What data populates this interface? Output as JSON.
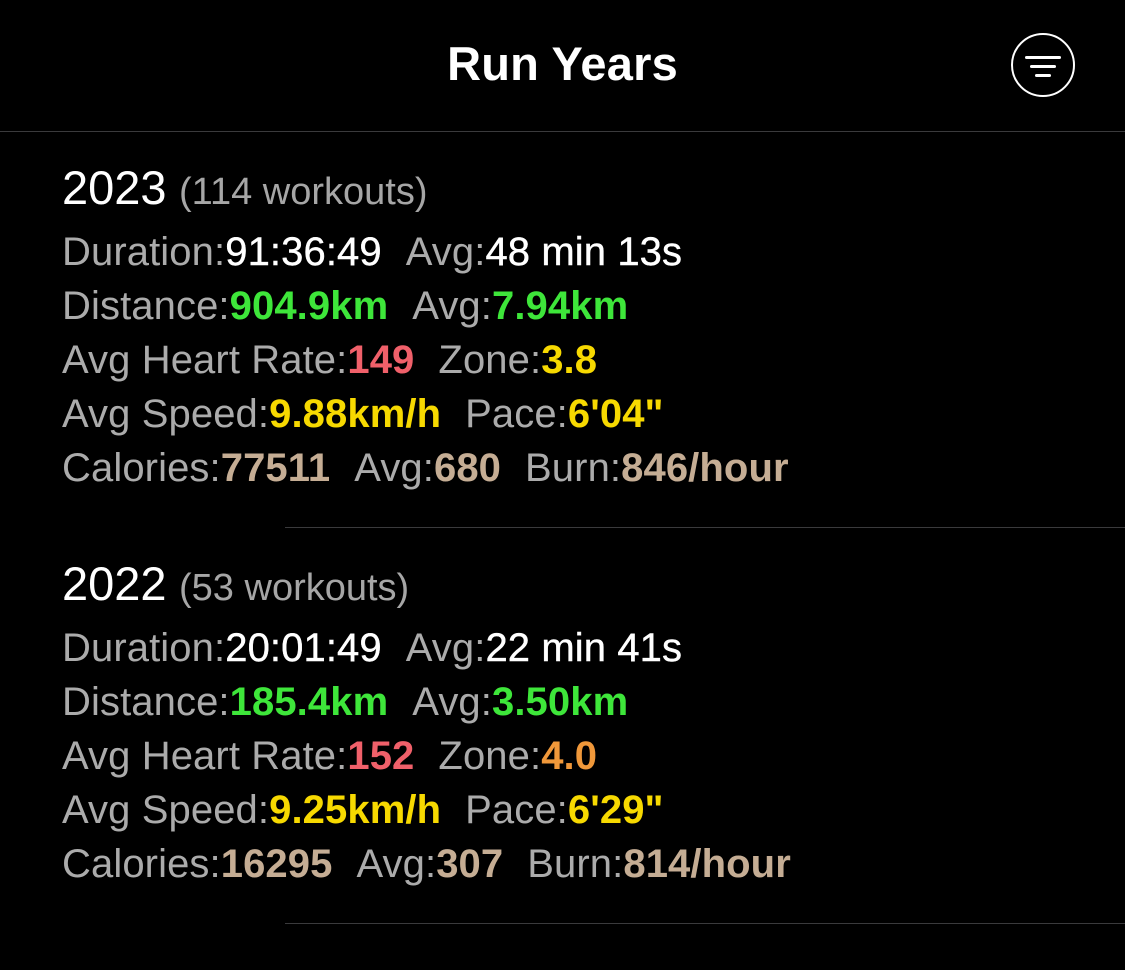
{
  "nav": {
    "title": "Run Years",
    "filter_icon": "filter-lines-icon"
  },
  "colors": {
    "background": "#000000",
    "label": "#ababab",
    "white_value": "#ffffff",
    "green_value": "#3ee63a",
    "red_value": "#f0606a",
    "yellow_value": "#f7d900",
    "orange_value": "#f0983a",
    "tan_value": "#c5ad94"
  },
  "years": [
    {
      "year": "2023",
      "workouts": "(114 workouts)",
      "duration_label": "Duration:",
      "duration": "91:36:49",
      "duration_avg_label": "Avg:",
      "duration_avg": "48 min 13s",
      "distance_label": "Distance:",
      "distance": "904.9km",
      "distance_avg_label": "Avg:",
      "distance_avg": "7.94km",
      "hr_label": "Avg Heart Rate:",
      "hr": "149",
      "zone_label": "Zone:",
      "zone": "3.8",
      "speed_label": "Avg Speed:",
      "speed": "9.88km/h",
      "pace_label": "Pace:",
      "pace": "6'04\"",
      "calories_label": "Calories:",
      "calories": "77511",
      "calories_avg_label": "Avg:",
      "calories_avg": "680",
      "burn_label": "Burn:",
      "burn": "846/hour"
    },
    {
      "year": "2022",
      "workouts": "(53 workouts)",
      "duration_label": "Duration:",
      "duration": "20:01:49",
      "duration_avg_label": "Avg:",
      "duration_avg": "22 min 41s",
      "distance_label": "Distance:",
      "distance": "185.4km",
      "distance_avg_label": "Avg:",
      "distance_avg": "3.50km",
      "hr_label": "Avg Heart Rate:",
      "hr": "152",
      "zone_label": "Zone:",
      "zone": "4.0",
      "speed_label": "Avg Speed:",
      "speed": "9.25km/h",
      "pace_label": "Pace:",
      "pace": "6'29\"",
      "calories_label": "Calories:",
      "calories": "16295",
      "calories_avg_label": "Avg:",
      "calories_avg": "307",
      "burn_label": "Burn:",
      "burn": "814/hour"
    }
  ]
}
